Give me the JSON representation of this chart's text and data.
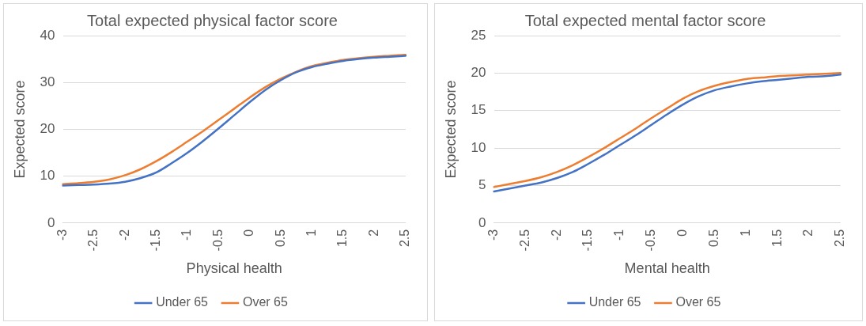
{
  "chart_data": [
    {
      "type": "line",
      "title": "Total expected physical factor score",
      "xlabel": "Physical health",
      "ylabel": "Expected score",
      "categories": [
        "-3",
        null,
        "-2.5",
        null,
        "-2",
        null,
        "-1.5",
        null,
        "-1",
        null,
        "-0.5",
        null,
        "0",
        null,
        "0.5",
        null,
        "1",
        null,
        "1.5",
        null,
        "2",
        null,
        "2.5"
      ],
      "series": [
        {
          "name": "Under 65",
          "color": "#4472c4",
          "values": [
            8.0,
            8.1,
            8.2,
            8.4,
            8.8,
            9.6,
            10.8,
            12.8,
            15.0,
            17.5,
            20.2,
            23.0,
            25.8,
            28.4,
            30.5,
            32.2,
            33.3,
            34.0,
            34.6,
            35.0,
            35.3,
            35.5,
            35.7
          ]
        },
        {
          "name": "Over 65",
          "color": "#ed7d31",
          "values": [
            8.3,
            8.5,
            8.8,
            9.3,
            10.2,
            11.5,
            13.2,
            15.2,
            17.4,
            19.6,
            22.0,
            24.4,
            26.8,
            29.0,
            30.8,
            32.3,
            33.5,
            34.2,
            34.8,
            35.2,
            35.5,
            35.7,
            35.9
          ]
        }
      ],
      "ylim": [
        0,
        40
      ],
      "yticks": [
        0,
        10,
        20,
        30,
        40
      ],
      "grid": "y",
      "legend": "bottom",
      "marker": "none",
      "line_style": "solid"
    },
    {
      "type": "line",
      "title": "Total expected mental factor score",
      "xlabel": "Mental health",
      "ylabel": "Expected score",
      "categories": [
        "-3",
        null,
        "-2.5",
        null,
        "-2",
        null,
        "-1.5",
        null,
        "-1",
        null,
        "-0.5",
        null,
        "0",
        null,
        "0.5",
        null,
        "1",
        null,
        "1.5",
        null,
        "2",
        null,
        "2.5"
      ],
      "series": [
        {
          "name": "Under 65",
          "color": "#4472c4",
          "values": [
            4.2,
            4.6,
            5.0,
            5.4,
            6.0,
            6.8,
            7.9,
            9.1,
            10.4,
            11.7,
            13.1,
            14.5,
            15.8,
            16.9,
            17.7,
            18.2,
            18.6,
            18.9,
            19.1,
            19.3,
            19.5,
            19.6,
            19.8
          ]
        },
        {
          "name": "Over 65",
          "color": "#ed7d31",
          "values": [
            4.8,
            5.2,
            5.6,
            6.1,
            6.8,
            7.7,
            8.8,
            10.0,
            11.3,
            12.6,
            14.0,
            15.3,
            16.6,
            17.6,
            18.3,
            18.8,
            19.2,
            19.4,
            19.6,
            19.7,
            19.8,
            19.9,
            20.0
          ]
        }
      ],
      "ylim": [
        0,
        25
      ],
      "yticks": [
        0,
        5,
        10,
        15,
        20,
        25
      ],
      "grid": "y",
      "legend": "bottom",
      "marker": "none",
      "line_style": "solid"
    }
  ]
}
